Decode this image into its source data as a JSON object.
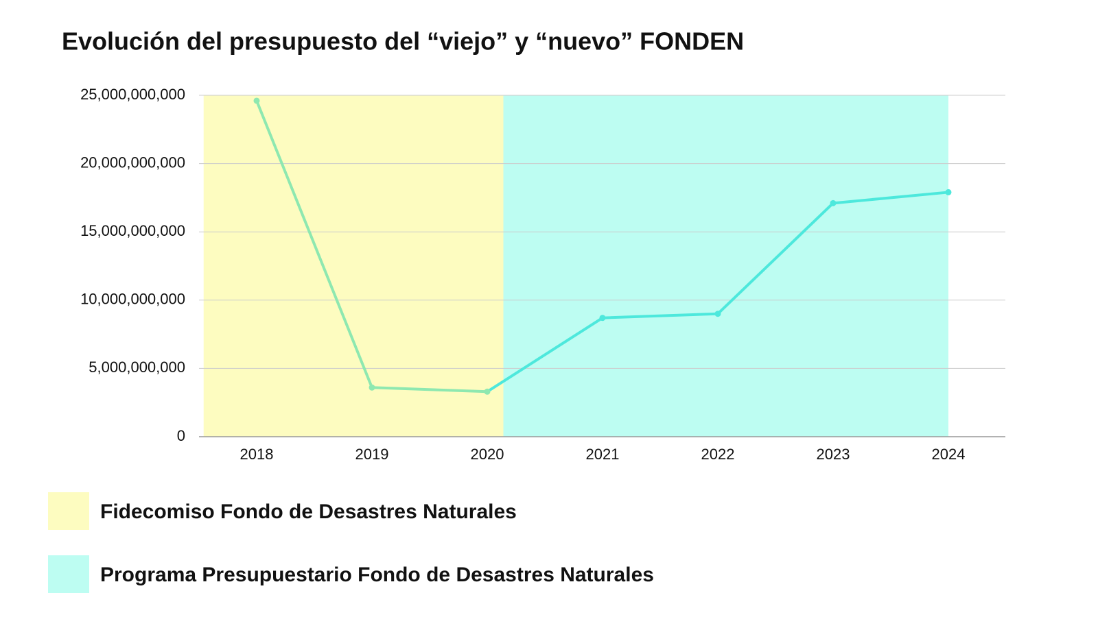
{
  "chart_data": {
    "type": "line",
    "title": "Evolución del presupuesto del “viejo” y “nuevo” FONDEN",
    "categories": [
      "2018",
      "2019",
      "2020",
      "2021",
      "2022",
      "2023",
      "2024"
    ],
    "values": [
      24600000000,
      3600000000,
      3300000000,
      8700000000,
      9000000000,
      17100000000,
      17900000000
    ],
    "regions": [
      {
        "name": "Fidecomiso Fondo de Desastres Naturales",
        "color": "#fdfcc0",
        "line_color": "#8ee8b0",
        "from": "2018",
        "to": "2020"
      },
      {
        "name": "Programa Presupuestario Fondo de Desastres Naturales",
        "color": "#bdfdf2",
        "line_color": "#4de8dc",
        "from": "2020",
        "to": "2024"
      }
    ],
    "ylim": [
      0,
      25000000000
    ],
    "yticks": [
      0,
      {
        "value": 5000000000,
        "label": "5,000,000,000"
      },
      {
        "value": 10000000000,
        "label": "10,000,000,000"
      },
      {
        "value": 15000000000,
        "label": "15,000,000,000"
      },
      {
        "value": 20000000000,
        "label": "20,000,000,000"
      },
      {
        "value": 25000000000,
        "label": "25,000,000,000"
      }
    ],
    "grid": true
  }
}
